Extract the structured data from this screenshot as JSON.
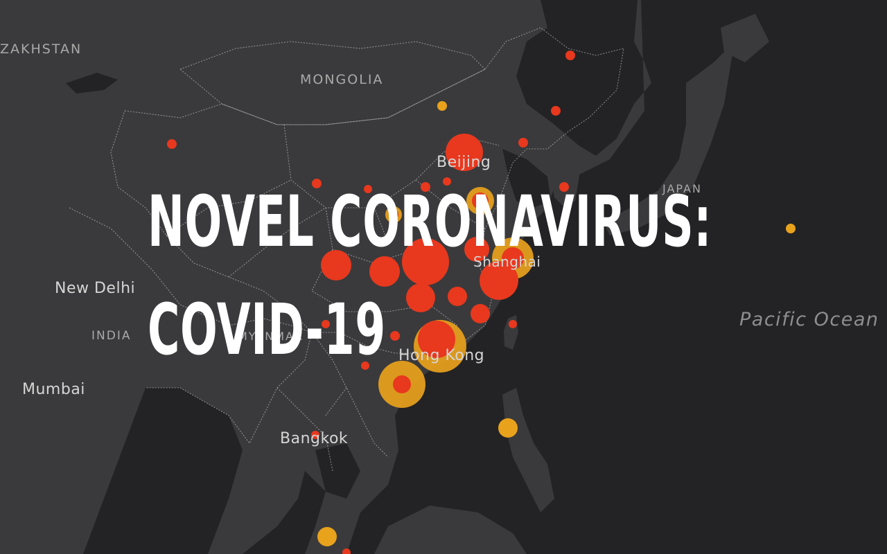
{
  "headline": {
    "line1": "NOVEL CORONAVIRUS:",
    "line2": "COVID-19"
  },
  "map_labels": {
    "countries": {
      "kazakhstan": "ZAKHSTAN",
      "mongolia": "MONGOLIA",
      "india": "INDIA",
      "japan": "JAPAN",
      "myanmar": "MYANMAR"
    },
    "cities": {
      "new_delhi": "New Delhi",
      "mumbai": "Mumbai",
      "bangkok": "Bangkok",
      "beijing": "Beijing",
      "shanghai": "Shanghai",
      "hong_kong": "Hong Kong"
    },
    "water": {
      "pacific": "Pacific Ocean"
    }
  },
  "colors": {
    "background": "#232325",
    "land": "#3a3a3c",
    "border": "#d9d9d9",
    "confirmed_cases": "#e8381e",
    "secondary_cases": "#e9a21c",
    "headline": "#ffffff"
  }
}
